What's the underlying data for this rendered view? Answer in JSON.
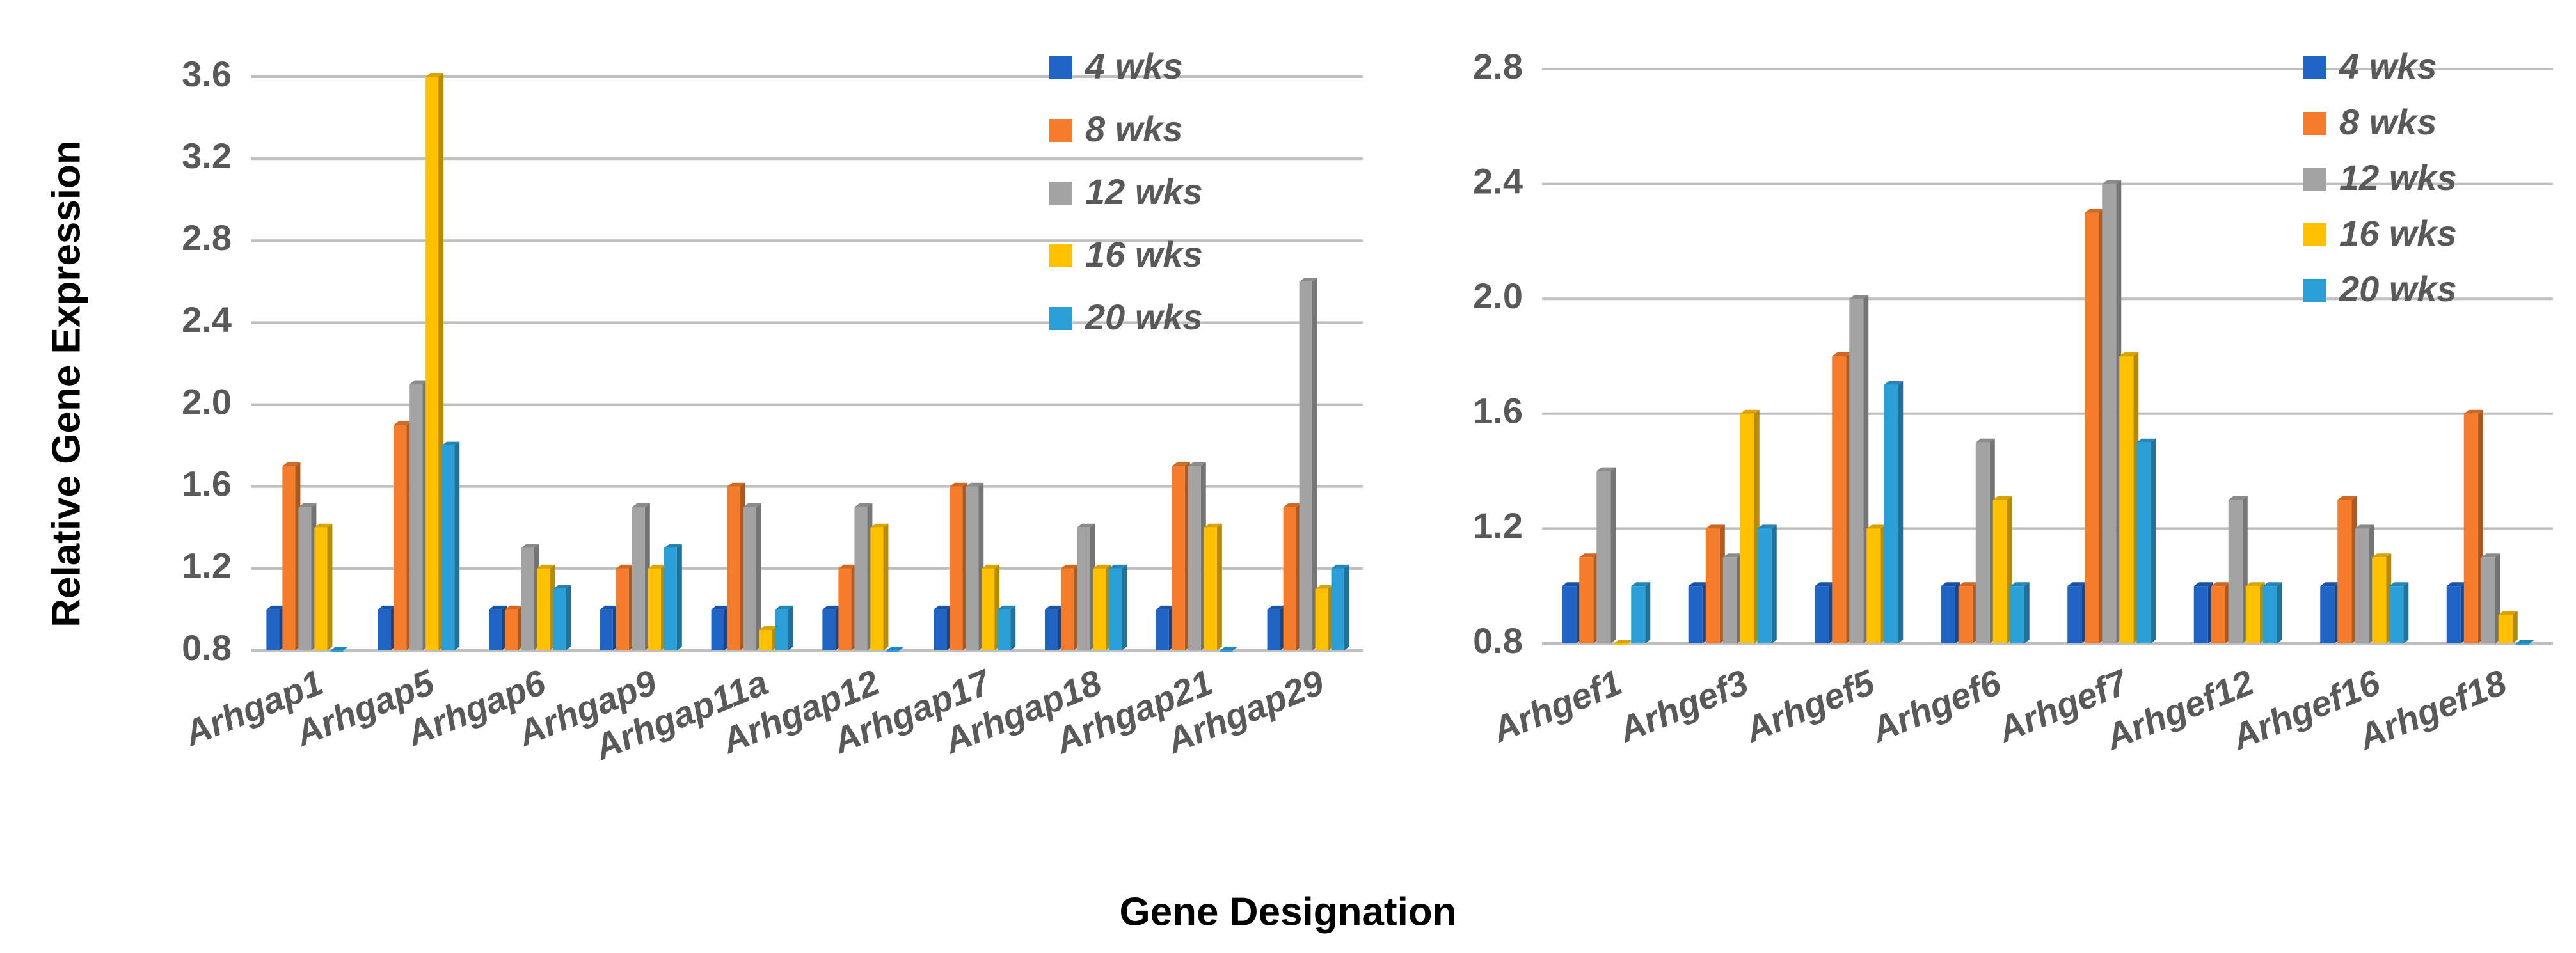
{
  "ylabel": "Relative Gene Expression",
  "xlabel": "Gene Designation",
  "series_colors": [
    "#1f63c4",
    "#f57c2a",
    "#a3a3a3",
    "#ffc000",
    "#2a9fd8"
  ],
  "chart_data": [
    {
      "type": "bar",
      "title": "",
      "ylabel": "Relative Gene Expression",
      "xlabel": "Gene Designation",
      "ylim": [
        0.8,
        3.6
      ],
      "yticks": [
        "0.8",
        "1.2",
        "1.6",
        "2.0",
        "2.4",
        "2.8",
        "3.2",
        "3.6"
      ],
      "grid": true,
      "legend_position": "top-right",
      "categories": [
        "Arhgap1",
        "Arhgap5",
        "Arhgap6",
        "Arhgap9",
        "Arhgap11a",
        "Arhgap12",
        "Arhgap17",
        "Arhgap18",
        "Arhgap21",
        "Arhgap29"
      ],
      "series": [
        {
          "name": "4 wks",
          "values": [
            1.0,
            1.0,
            1.0,
            1.0,
            1.0,
            1.0,
            1.0,
            1.0,
            1.0,
            1.0
          ]
        },
        {
          "name": "8 wks",
          "values": [
            1.7,
            1.9,
            1.0,
            1.2,
            1.6,
            1.2,
            1.6,
            1.2,
            1.7,
            1.5
          ]
        },
        {
          "name": "12 wks",
          "values": [
            1.5,
            2.1,
            1.3,
            1.5,
            1.5,
            1.5,
            1.6,
            1.4,
            1.7,
            2.6
          ]
        },
        {
          "name": "16 wks",
          "values": [
            1.4,
            3.6,
            1.2,
            1.2,
            0.9,
            1.4,
            1.2,
            1.2,
            1.4,
            1.1
          ]
        },
        {
          "name": "20 wks",
          "values": [
            0.8,
            1.8,
            1.1,
            1.3,
            1.0,
            0.8,
            1.0,
            1.2,
            0.8,
            1.2
          ]
        }
      ]
    },
    {
      "type": "bar",
      "title": "",
      "ylabel": "Relative Gene Expression",
      "xlabel": "Gene Designation",
      "ylim": [
        0.8,
        2.8
      ],
      "yticks": [
        "0.8",
        "1.2",
        "1.6",
        "2.0",
        "2.4",
        "2.8"
      ],
      "grid": true,
      "legend_position": "top-right",
      "categories": [
        "Arhgef1",
        "Arhgef3",
        "Arhgef5",
        "Arhgef6",
        "Arhgef7",
        "Arhgef12",
        "Arhgef16",
        "Arhgef18"
      ],
      "series": [
        {
          "name": "4 wks",
          "values": [
            1.0,
            1.0,
            1.0,
            1.0,
            1.0,
            1.0,
            1.0,
            1.0
          ]
        },
        {
          "name": "8 wks",
          "values": [
            1.1,
            1.2,
            1.8,
            1.0,
            2.3,
            1.0,
            1.3,
            1.6
          ]
        },
        {
          "name": "12 wks",
          "values": [
            1.4,
            1.1,
            2.0,
            1.5,
            2.4,
            1.3,
            1.2,
            1.1
          ]
        },
        {
          "name": "16 wks",
          "values": [
            0.8,
            1.6,
            1.2,
            1.3,
            1.8,
            1.0,
            1.1,
            0.9
          ]
        },
        {
          "name": "20 wks",
          "values": [
            1.0,
            1.2,
            1.7,
            1.0,
            1.5,
            1.0,
            1.0,
            0.8
          ]
        }
      ]
    }
  ]
}
